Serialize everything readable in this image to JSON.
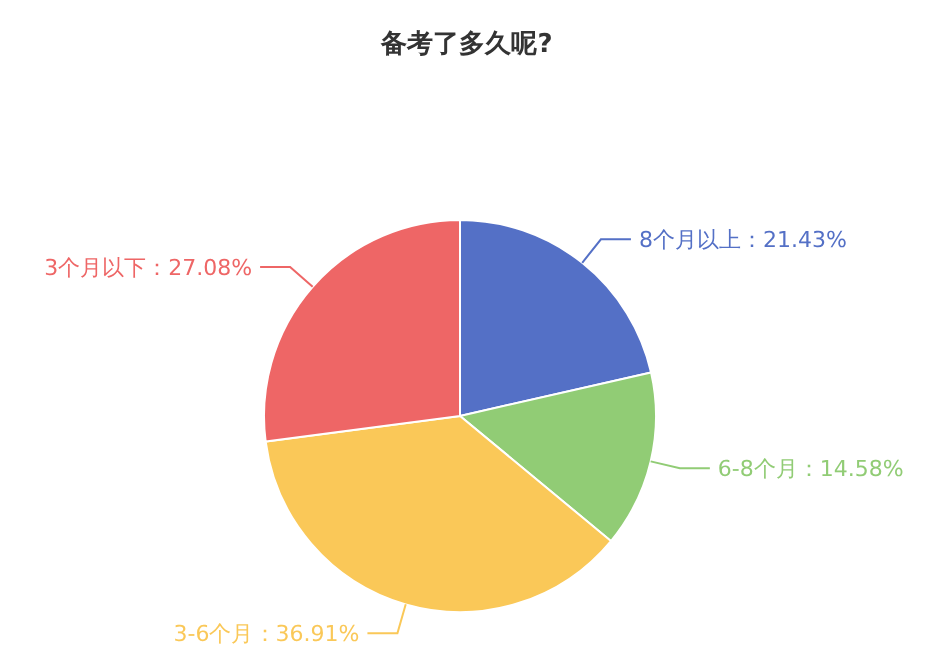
{
  "chart_data": {
    "type": "pie",
    "title": "备考了多久呢?",
    "categories": [
      "8个月以上",
      "6-8个月",
      "3-6个月",
      "3个月以下"
    ],
    "values": [
      21.43,
      14.58,
      36.91,
      27.08
    ],
    "colors": [
      "#5470c6",
      "#91cc75",
      "#fac858",
      "#ee6666"
    ],
    "value_labels": [
      "：21.43%",
      "：14.58%",
      "：36.91%",
      "：27.08%"
    ]
  }
}
